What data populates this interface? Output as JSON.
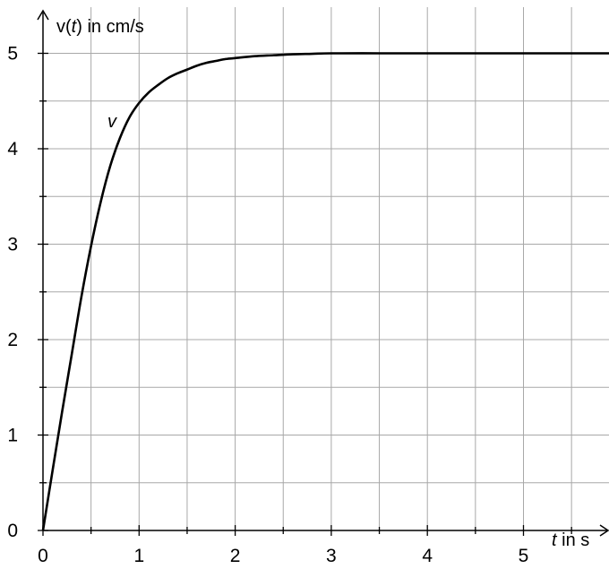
{
  "chart_data": {
    "type": "line",
    "xlim": [
      0,
      5.95
    ],
    "ylim": [
      0,
      5.5
    ],
    "x_ticks": [
      0,
      1,
      2,
      3,
      4,
      5
    ],
    "y_ticks": [
      0,
      1,
      2,
      3,
      4,
      5
    ],
    "x_minor_step": 0.5,
    "y_minor_step": 0.5,
    "grid": true,
    "x_axis_label": {
      "var": "t",
      "rest": " in s"
    },
    "y_axis_label": {
      "var": "t",
      "prefix": "v(",
      "suffix": ") in cm/s"
    },
    "series": [
      {
        "name": "v",
        "color": "#000000",
        "x": [
          0,
          0.1,
          0.2,
          0.3,
          0.4,
          0.5,
          0.6,
          0.7,
          0.8,
          0.9,
          1.0,
          1.1,
          1.2,
          1.3,
          1.4,
          1.5,
          1.6,
          1.7,
          1.8,
          1.9,
          2.0,
          2.2,
          2.4,
          2.6,
          2.8,
          3.0,
          3.5,
          4.0,
          4.5,
          5.0,
          5.5,
          5.95
        ],
        "y": [
          0,
          0.63,
          1.25,
          1.85,
          2.45,
          2.98,
          3.44,
          3.82,
          4.11,
          4.33,
          4.48,
          4.59,
          4.67,
          4.74,
          4.79,
          4.83,
          4.87,
          4.9,
          4.92,
          4.94,
          4.95,
          4.97,
          4.98,
          4.99,
          4.995,
          5.0,
          5.0,
          5.0,
          5.0,
          5.0,
          5.0,
          5.0
        ]
      }
    ]
  }
}
